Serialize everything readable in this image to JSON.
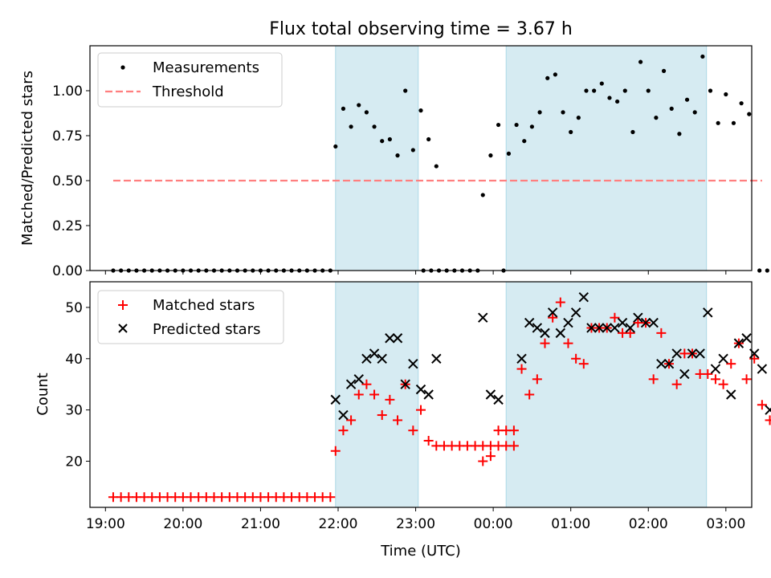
{
  "chart_data": [
    {
      "type": "scatter",
      "title": "Flux total observing time = 3.67 h",
      "xlabel": "",
      "ylabel": "Matched/Predicted stars",
      "ylim": [
        0,
        1.25
      ],
      "xlim": [
        "18:48",
        "03:20"
      ],
      "yticks": [
        "0.00",
        "0.25",
        "0.50",
        "0.75",
        "1.00"
      ],
      "legend_position": "top-left",
      "shaded_intervals": [
        [
          "21:58",
          "23:02"
        ],
        [
          "00:10",
          "02:45"
        ]
      ],
      "shade_color": "#add8e6",
      "series": [
        {
          "name": "Measurements",
          "marker": "dot",
          "color": "#000000",
          "points": [
            [
              "19:06",
              0
            ],
            [
              "19:12",
              0
            ],
            [
              "19:18",
              0
            ],
            [
              "19:24",
              0
            ],
            [
              "19:30",
              0
            ],
            [
              "19:36",
              0
            ],
            [
              "19:42",
              0
            ],
            [
              "19:48",
              0
            ],
            [
              "19:54",
              0
            ],
            [
              "20:00",
              0
            ],
            [
              "20:06",
              0
            ],
            [
              "20:12",
              0
            ],
            [
              "20:18",
              0
            ],
            [
              "20:24",
              0
            ],
            [
              "20:30",
              0
            ],
            [
              "20:36",
              0
            ],
            [
              "20:42",
              0
            ],
            [
              "20:48",
              0
            ],
            [
              "20:54",
              0
            ],
            [
              "21:00",
              0
            ],
            [
              "21:06",
              0
            ],
            [
              "21:12",
              0
            ],
            [
              "21:18",
              0
            ],
            [
              "21:24",
              0
            ],
            [
              "21:30",
              0
            ],
            [
              "21:36",
              0
            ],
            [
              "21:42",
              0
            ],
            [
              "21:48",
              0
            ],
            [
              "21:54",
              0
            ],
            [
              "21:58",
              0.69
            ],
            [
              "22:04",
              0.9
            ],
            [
              "22:10",
              0.8
            ],
            [
              "22:16",
              0.92
            ],
            [
              "22:22",
              0.88
            ],
            [
              "22:28",
              0.8
            ],
            [
              "22:34",
              0.72
            ],
            [
              "22:40",
              0.73
            ],
            [
              "22:46",
              0.64
            ],
            [
              "22:52",
              1.0
            ],
            [
              "22:58",
              0.67
            ],
            [
              "23:04",
              0.89
            ],
            [
              "23:10",
              0.73
            ],
            [
              "23:16",
              0.58
            ],
            [
              "23:06",
              0
            ],
            [
              "23:12",
              0
            ],
            [
              "23:18",
              0
            ],
            [
              "23:24",
              0
            ],
            [
              "23:30",
              0
            ],
            [
              "23:36",
              0
            ],
            [
              "23:42",
              0
            ],
            [
              "23:48",
              0
            ],
            [
              "23:52",
              0.42
            ],
            [
              "23:58",
              0.64
            ],
            [
              "00:04",
              0.81
            ],
            [
              "00:08",
              0
            ],
            [
              "00:12",
              0.65
            ],
            [
              "00:18",
              0.81
            ],
            [
              "00:24",
              0.72
            ],
            [
              "00:30",
              0.8
            ],
            [
              "00:36",
              0.88
            ],
            [
              "00:42",
              1.07
            ],
            [
              "00:48",
              1.09
            ],
            [
              "00:54",
              0.88
            ],
            [
              "01:00",
              0.77
            ],
            [
              "01:06",
              0.85
            ],
            [
              "01:12",
              1.0
            ],
            [
              "01:18",
              1.0
            ],
            [
              "01:24",
              1.04
            ],
            [
              "01:30",
              0.96
            ],
            [
              "01:36",
              0.94
            ],
            [
              "01:42",
              1.0
            ],
            [
              "01:48",
              0.77
            ],
            [
              "01:54",
              1.16
            ],
            [
              "02:00",
              1.0
            ],
            [
              "02:06",
              0.85
            ],
            [
              "02:12",
              1.11
            ],
            [
              "02:18",
              0.9
            ],
            [
              "02:24",
              0.76
            ],
            [
              "02:30",
              0.95
            ],
            [
              "02:36",
              0.88
            ],
            [
              "02:42",
              1.19
            ],
            [
              "02:48",
              1.0
            ],
            [
              "02:54",
              0.82
            ],
            [
              "03:00",
              0.98
            ],
            [
              "03:06",
              0.82
            ],
            [
              "03:12",
              0.93
            ],
            [
              "03:18",
              0.87
            ],
            [
              "03:26",
              0
            ],
            [
              "03:32",
              0
            ]
          ]
        },
        {
          "name": "Threshold",
          "marker": "dashed-line",
          "color": "#ff7f7f",
          "points": [
            [
              "19:06",
              0.5
            ],
            [
              "03:28",
              0.5
            ]
          ]
        }
      ]
    },
    {
      "type": "scatter",
      "title": "",
      "xlabel": "Time (UTC)",
      "ylabel": "Count",
      "ylim": [
        11,
        55
      ],
      "xticks": [
        "19:00",
        "20:00",
        "21:00",
        "22:00",
        "23:00",
        "00:00",
        "01:00",
        "02:00",
        "03:00"
      ],
      "yticks": [
        "20",
        "30",
        "40",
        "50"
      ],
      "legend_position": "top-left",
      "shaded_intervals": [
        [
          "21:58",
          "23:02"
        ],
        [
          "00:10",
          "02:45"
        ]
      ],
      "shade_color": "#add8e6",
      "series": [
        {
          "name": "Matched stars",
          "marker": "plus",
          "color": "#ff0000",
          "points": [
            [
              "19:06",
              13
            ],
            [
              "19:12",
              13
            ],
            [
              "19:18",
              13
            ],
            [
              "19:24",
              13
            ],
            [
              "19:30",
              13
            ],
            [
              "19:36",
              13
            ],
            [
              "19:42",
              13
            ],
            [
              "19:48",
              13
            ],
            [
              "19:54",
              13
            ],
            [
              "20:00",
              13
            ],
            [
              "20:06",
              13
            ],
            [
              "20:12",
              13
            ],
            [
              "20:18",
              13
            ],
            [
              "20:24",
              13
            ],
            [
              "20:30",
              13
            ],
            [
              "20:36",
              13
            ],
            [
              "20:42",
              13
            ],
            [
              "20:48",
              13
            ],
            [
              "20:54",
              13
            ],
            [
              "21:00",
              13
            ],
            [
              "21:06",
              13
            ],
            [
              "21:12",
              13
            ],
            [
              "21:18",
              13
            ],
            [
              "21:24",
              13
            ],
            [
              "21:30",
              13
            ],
            [
              "21:36",
              13
            ],
            [
              "21:42",
              13
            ],
            [
              "21:48",
              13
            ],
            [
              "21:54",
              13
            ],
            [
              "21:58",
              22
            ],
            [
              "22:04",
              26
            ],
            [
              "22:10",
              28
            ],
            [
              "22:16",
              33
            ],
            [
              "22:22",
              35
            ],
            [
              "22:28",
              33
            ],
            [
              "22:34",
              29
            ],
            [
              "22:40",
              32
            ],
            [
              "22:46",
              28
            ],
            [
              "22:52",
              35
            ],
            [
              "22:58",
              26
            ],
            [
              "23:04",
              30
            ],
            [
              "23:10",
              24
            ],
            [
              "23:16",
              23
            ],
            [
              "23:22",
              23
            ],
            [
              "23:28",
              23
            ],
            [
              "23:34",
              23
            ],
            [
              "23:40",
              23
            ],
            [
              "23:46",
              23
            ],
            [
              "23:52",
              23
            ],
            [
              "23:58",
              23
            ],
            [
              "00:04",
              23
            ],
            [
              "00:10",
              23
            ],
            [
              "00:16",
              23
            ],
            [
              "23:52",
              20
            ],
            [
              "23:58",
              21
            ],
            [
              "00:04",
              26
            ],
            [
              "00:10",
              26
            ],
            [
              "00:16",
              26
            ],
            [
              "00:22",
              38
            ],
            [
              "00:28",
              33
            ],
            [
              "00:34",
              36
            ],
            [
              "00:40",
              43
            ],
            [
              "00:46",
              48
            ],
            [
              "00:52",
              51
            ],
            [
              "00:58",
              43
            ],
            [
              "01:04",
              40
            ],
            [
              "01:10",
              39
            ],
            [
              "01:16",
              46
            ],
            [
              "01:22",
              46
            ],
            [
              "01:28",
              46
            ],
            [
              "01:34",
              48
            ],
            [
              "01:40",
              45
            ],
            [
              "01:46",
              45
            ],
            [
              "01:52",
              47
            ],
            [
              "01:58",
              47
            ],
            [
              "02:04",
              36
            ],
            [
              "02:10",
              45
            ],
            [
              "02:16",
              39
            ],
            [
              "02:22",
              35
            ],
            [
              "02:28",
              41
            ],
            [
              "02:34",
              41
            ],
            [
              "02:40",
              37
            ],
            [
              "02:46",
              37
            ],
            [
              "02:52",
              36
            ],
            [
              "02:58",
              35
            ],
            [
              "03:04",
              39
            ],
            [
              "03:10",
              43
            ],
            [
              "03:16",
              36
            ],
            [
              "03:22",
              40
            ],
            [
              "03:28",
              31
            ],
            [
              "03:34",
              28
            ],
            [
              "03:40",
              20
            ],
            [
              "03:46",
              20
            ],
            [
              "03:52",
              20
            ]
          ]
        },
        {
          "name": "Predicted stars",
          "marker": "x",
          "color": "#000000",
          "points": [
            [
              "21:58",
              32
            ],
            [
              "22:04",
              29
            ],
            [
              "22:10",
              35
            ],
            [
              "22:16",
              36
            ],
            [
              "22:22",
              40
            ],
            [
              "22:28",
              41
            ],
            [
              "22:34",
              40
            ],
            [
              "22:40",
              44
            ],
            [
              "22:46",
              44
            ],
            [
              "22:52",
              35
            ],
            [
              "22:58",
              39
            ],
            [
              "23:04",
              34
            ],
            [
              "23:10",
              33
            ],
            [
              "23:16",
              40
            ],
            [
              "23:52",
              48
            ],
            [
              "23:58",
              33
            ],
            [
              "00:04",
              32
            ],
            [
              "00:22",
              40
            ],
            [
              "00:28",
              47
            ],
            [
              "00:34",
              46
            ],
            [
              "00:40",
              45
            ],
            [
              "00:46",
              49
            ],
            [
              "00:52",
              45
            ],
            [
              "00:58",
              47
            ],
            [
              "01:04",
              49
            ],
            [
              "01:10",
              52
            ],
            [
              "01:16",
              46
            ],
            [
              "01:22",
              46
            ],
            [
              "01:28",
              46
            ],
            [
              "01:34",
              46
            ],
            [
              "01:40",
              47
            ],
            [
              "01:46",
              46
            ],
            [
              "01:52",
              48
            ],
            [
              "01:58",
              47
            ],
            [
              "02:04",
              47
            ],
            [
              "02:10",
              39
            ],
            [
              "02:16",
              39
            ],
            [
              "02:22",
              41
            ],
            [
              "02:28",
              37
            ],
            [
              "02:34",
              41
            ],
            [
              "02:40",
              41
            ],
            [
              "02:46",
              49
            ],
            [
              "02:52",
              38
            ],
            [
              "02:58",
              40
            ],
            [
              "03:04",
              33
            ],
            [
              "03:10",
              43
            ],
            [
              "03:16",
              44
            ],
            [
              "03:22",
              41
            ],
            [
              "03:28",
              38
            ],
            [
              "03:34",
              30
            ],
            [
              "03:40",
              23
            ]
          ]
        }
      ]
    }
  ]
}
